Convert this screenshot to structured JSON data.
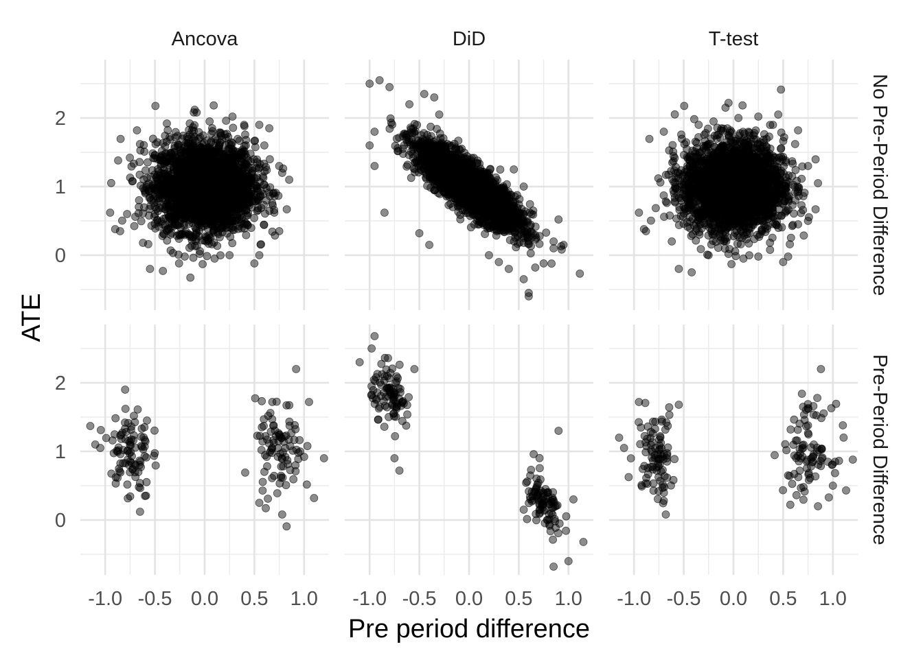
{
  "chart_data": {
    "type": "scatter",
    "xlabel": "Pre period difference",
    "ylabel": "ATE",
    "column_facets": [
      "Ancova",
      "DiD",
      "T-test"
    ],
    "row_facets": [
      "No Pre-Period Difference",
      "Pre-Period Difference"
    ],
    "x_ticks": [
      -1.0,
      -0.5,
      0.0,
      0.5,
      1.0
    ],
    "x_tick_labels": [
      "-1.0",
      "-0.5",
      "0.0",
      "0.5",
      "1.0"
    ],
    "y_ticks": [
      0,
      1,
      2
    ],
    "y_tick_labels": [
      "0",
      "1",
      "2"
    ],
    "xlim": [
      -1.25,
      1.25
    ],
    "ylim": [
      -0.8,
      2.85
    ],
    "grid": true,
    "point_color": "#000000",
    "point_opacity": 0.45,
    "panels": [
      {
        "column": "Ancova",
        "row": "No Pre-Period Difference",
        "cloud": {
          "x_center": 0.0,
          "x_sd": 0.25,
          "y_center": 1.0,
          "y_sd": 0.33,
          "slope": 0.0,
          "n": 2600
        },
        "points": [
          [
            -0.95,
            0.62
          ],
          [
            -0.9,
            0.38
          ],
          [
            -0.85,
            0.35
          ],
          [
            -0.55,
            -0.2
          ],
          [
            -0.42,
            -0.23
          ],
          [
            -0.1,
            2.12
          ],
          [
            -0.08,
            2.08
          ],
          [
            -0.15,
            1.92
          ],
          [
            -0.38,
            1.92
          ],
          [
            0.05,
            1.95
          ],
          [
            0.28,
            2.02
          ],
          [
            0.4,
            1.88
          ],
          [
            0.55,
            1.9
          ],
          [
            0.65,
            1.85
          ],
          [
            0.75,
            1.3
          ],
          [
            0.78,
            1.2
          ],
          [
            0.85,
            1.1
          ],
          [
            0.75,
            0.35
          ],
          [
            0.55,
            0.0
          ],
          [
            0.5,
            -0.12
          ],
          [
            -0.02,
            -0.13
          ],
          [
            0.1,
            -0.05
          ],
          [
            -0.2,
            -0.02
          ],
          [
            0.25,
            0.0
          ],
          [
            -0.62,
            0.18
          ],
          [
            -0.78,
            0.6
          ],
          [
            -0.68,
            1.82
          ],
          [
            -0.65,
            1.62
          ],
          [
            0.7,
            0.62
          ],
          [
            0.6,
            1.6
          ]
        ]
      },
      {
        "column": "DiD",
        "row": "No Pre-Period Difference",
        "cloud": {
          "x_center": 0.0,
          "x_sd": 0.26,
          "y_center": 1.0,
          "y_sd": 0.17,
          "slope": -1.0,
          "n": 2600
        },
        "points": [
          [
            -1.0,
            2.5
          ],
          [
            -0.9,
            2.55
          ],
          [
            -0.8,
            2.45
          ],
          [
            -0.95,
            1.8
          ],
          [
            -1.0,
            1.6
          ],
          [
            -0.95,
            1.3
          ],
          [
            -0.5,
            0.32
          ],
          [
            -0.4,
            0.15
          ],
          [
            0.2,
            0.0
          ],
          [
            0.3,
            -0.1
          ],
          [
            0.4,
            -0.2
          ],
          [
            0.55,
            -0.35
          ],
          [
            0.6,
            -0.55
          ],
          [
            0.6,
            -0.6
          ],
          [
            0.75,
            -0.12
          ],
          [
            0.85,
            0.1
          ],
          [
            0.9,
            0.52
          ],
          [
            0.95,
            0.15
          ],
          [
            -0.3,
            2.05
          ],
          [
            -0.6,
            2.2
          ],
          [
            -0.45,
            2.35
          ],
          [
            -0.35,
            2.3
          ],
          [
            0.45,
            1.25
          ],
          [
            0.55,
            1.0
          ],
          [
            0.85,
            0.2
          ],
          [
            -0.85,
            0.62
          ]
        ]
      },
      {
        "column": "T-test",
        "row": "No Pre-Period Difference",
        "cloud": {
          "x_center": 0.0,
          "x_sd": 0.25,
          "y_center": 1.0,
          "y_sd": 0.33,
          "slope": 0.0,
          "n": 2600
        },
        "points": [
          [
            -0.95,
            0.62
          ],
          [
            -0.9,
            0.38
          ],
          [
            -0.88,
            0.35
          ],
          [
            -0.55,
            -0.2
          ],
          [
            -0.42,
            -0.25
          ],
          [
            -0.05,
            2.22
          ],
          [
            -0.08,
            2.15
          ],
          [
            -0.2,
            1.95
          ],
          [
            -0.35,
            1.9
          ],
          [
            0.05,
            2.0
          ],
          [
            0.25,
            2.02
          ],
          [
            0.45,
            2.05
          ],
          [
            0.65,
            1.82
          ],
          [
            0.75,
            1.3
          ],
          [
            0.85,
            1.05
          ],
          [
            0.75,
            0.5
          ],
          [
            0.55,
            -0.02
          ],
          [
            0.5,
            -0.1
          ],
          [
            -0.02,
            -0.13
          ],
          [
            0.1,
            -0.05
          ],
          [
            -0.25,
            0.0
          ],
          [
            0.25,
            -0.02
          ],
          [
            -0.62,
            0.2
          ],
          [
            -0.7,
            1.8
          ],
          [
            0.62,
            1.62
          ],
          [
            0.65,
            0.45
          ]
        ]
      },
      {
        "column": "Ancova",
        "row": "Pre-Period Difference",
        "clusters": [
          {
            "x_center": -0.75,
            "x_sd": 0.1,
            "y_center": 1.0,
            "y_sd": 0.35,
            "slope": 0.0,
            "n": 90
          },
          {
            "x_center": 0.75,
            "x_sd": 0.12,
            "y_center": 1.0,
            "y_sd": 0.35,
            "slope": 0.0,
            "n": 90
          }
        ],
        "points": [
          [
            -1.15,
            1.37
          ],
          [
            -1.1,
            1.1
          ],
          [
            -1.05,
            1.05
          ],
          [
            -0.8,
            1.9
          ],
          [
            -0.65,
            0.12
          ],
          [
            -0.6,
            0.35
          ],
          [
            -0.58,
            1.45
          ],
          [
            0.78,
            0.08
          ],
          [
            0.92,
            2.2
          ],
          [
            1.0,
            0.92
          ],
          [
            1.05,
            1.72
          ],
          [
            1.1,
            0.32
          ],
          [
            1.2,
            0.9
          ],
          [
            0.55,
            0.25
          ],
          [
            0.68,
            1.72
          ]
        ]
      },
      {
        "column": "DiD",
        "row": "Pre-Period Difference",
        "clusters": [
          {
            "x_center": -0.78,
            "x_sd": 0.1,
            "y_center": 1.8,
            "y_sd": 0.2,
            "slope": -1.0,
            "n": 90
          },
          {
            "x_center": 0.75,
            "x_sd": 0.1,
            "y_center": 0.2,
            "y_sd": 0.2,
            "slope": -1.0,
            "n": 90
          }
        ],
        "points": [
          [
            -0.95,
            2.68
          ],
          [
            -1.1,
            2.3
          ],
          [
            -0.98,
            2.5
          ],
          [
            -0.7,
            0.72
          ],
          [
            -0.75,
            0.9
          ],
          [
            -0.55,
            2.2
          ],
          [
            0.9,
            1.3
          ],
          [
            0.85,
            -0.68
          ],
          [
            1.0,
            -0.6
          ],
          [
            1.15,
            -0.32
          ],
          [
            0.55,
            0.15
          ],
          [
            1.05,
            0.3
          ],
          [
            0.65,
            0.96
          ]
        ]
      },
      {
        "column": "T-test",
        "row": "Pre-Period Difference",
        "clusters": [
          {
            "x_center": -0.78,
            "x_sd": 0.1,
            "y_center": 1.0,
            "y_sd": 0.33,
            "slope": 0.0,
            "n": 90
          },
          {
            "x_center": 0.75,
            "x_sd": 0.12,
            "y_center": 1.0,
            "y_sd": 0.33,
            "slope": 0.0,
            "n": 90
          }
        ],
        "points": [
          [
            -1.15,
            1.2
          ],
          [
            -1.1,
            1.05
          ],
          [
            -0.95,
            1.72
          ],
          [
            -0.68,
            0.08
          ],
          [
            -0.7,
            0.28
          ],
          [
            -0.55,
            1.68
          ],
          [
            0.88,
            2.2
          ],
          [
            0.85,
            0.2
          ],
          [
            1.1,
            1.38
          ],
          [
            1.2,
            0.88
          ],
          [
            0.55,
            0.65
          ],
          [
            0.7,
            1.65
          ],
          [
            1.0,
            0.5
          ]
        ]
      }
    ]
  }
}
